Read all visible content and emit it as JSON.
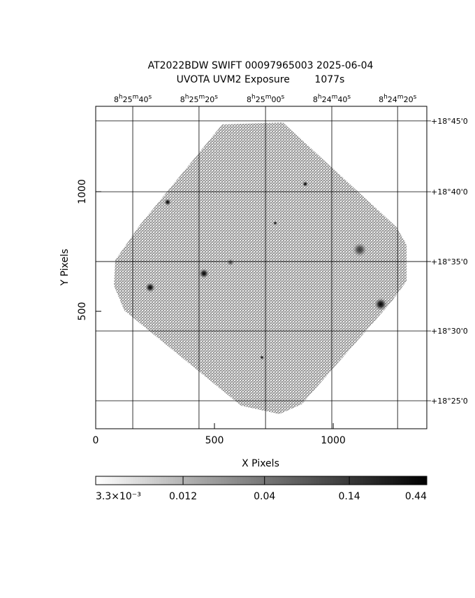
{
  "chart_data": {
    "type": "image",
    "title": "AT2022BDW SWIFT 00097965003 2025-06-04",
    "subtitle": "UVOTA UVM2 Exposure        1077s",
    "xlabel": "X Pixels",
    "ylabel": "Y Pixels",
    "xlim": [
      0,
      1394
    ],
    "ylim": [
      9,
      1357
    ],
    "xticks": [
      0,
      500,
      1000
    ],
    "yticks": [
      500,
      1000
    ],
    "grid": true,
    "top_ticks": [
      {
        "value": 156,
        "label": "8h25m40s"
      },
      {
        "value": 435,
        "label": "8h25m20s"
      },
      {
        "value": 715,
        "label": "8h25m00s"
      },
      {
        "value": 994,
        "label": "8h24m40s"
      },
      {
        "value": 1271,
        "label": "8h24m20s"
      }
    ],
    "right_ticks": [
      {
        "value": 1296,
        "label": "+18°45'0"
      },
      {
        "value": 1000,
        "label": "+18°40'0"
      },
      {
        "value": 708,
        "label": "+18°35'0"
      },
      {
        "value": 418,
        "label": "+18°30'0"
      },
      {
        "value": 126,
        "label": "+18°25'0"
      }
    ],
    "colorbar": {
      "scale": "log",
      "lim": [
        0.0033,
        0.44
      ],
      "ticks": [
        {
          "value": 0.0033,
          "label": "3.3×10⁻³"
        },
        0.012,
        0.04,
        0.14,
        0.44
      ]
    }
  }
}
